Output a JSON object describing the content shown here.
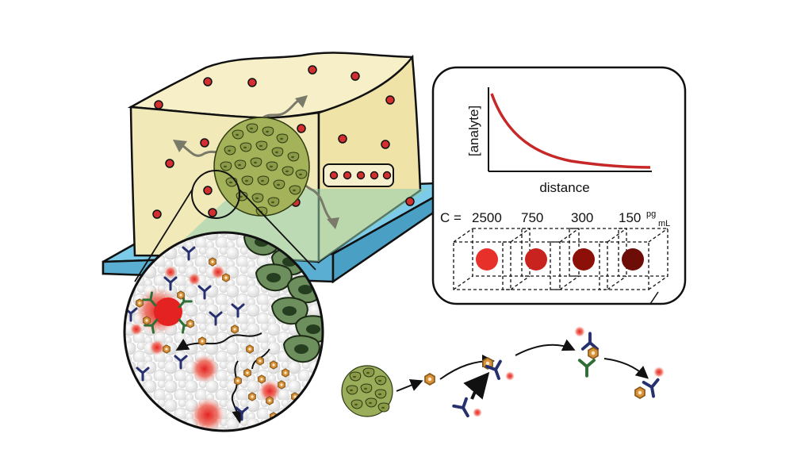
{
  "inset_plot": {
    "ylabel": "[analyte]",
    "xlabel": "distance",
    "curve_color": "#c62828"
  },
  "concentration_row": {
    "prefix": "C = ",
    "values": [
      "2500",
      "750",
      "300",
      "150"
    ],
    "unit_numerator": "pg",
    "unit_denominator": "mL",
    "dot_colors": [
      "#e8302a",
      "#c8231e",
      "#8c0f08",
      "#6e0c07"
    ]
  },
  "colors": {
    "gel": "#f2e9b8",
    "glass_slide": "#7ccbe8",
    "cell_cluster": "#8a9a48",
    "cells_dark": "#5c7a4e",
    "analyte": "#d23030",
    "antibody": "#27306e",
    "capture_antibody": "#2f6e34",
    "analyte_hexagon": "#c8832a"
  },
  "icons": [
    "analyte-hexagon-icon",
    "antibody-icon",
    "fluorescent-dot-icon",
    "cell-cluster-icon"
  ]
}
